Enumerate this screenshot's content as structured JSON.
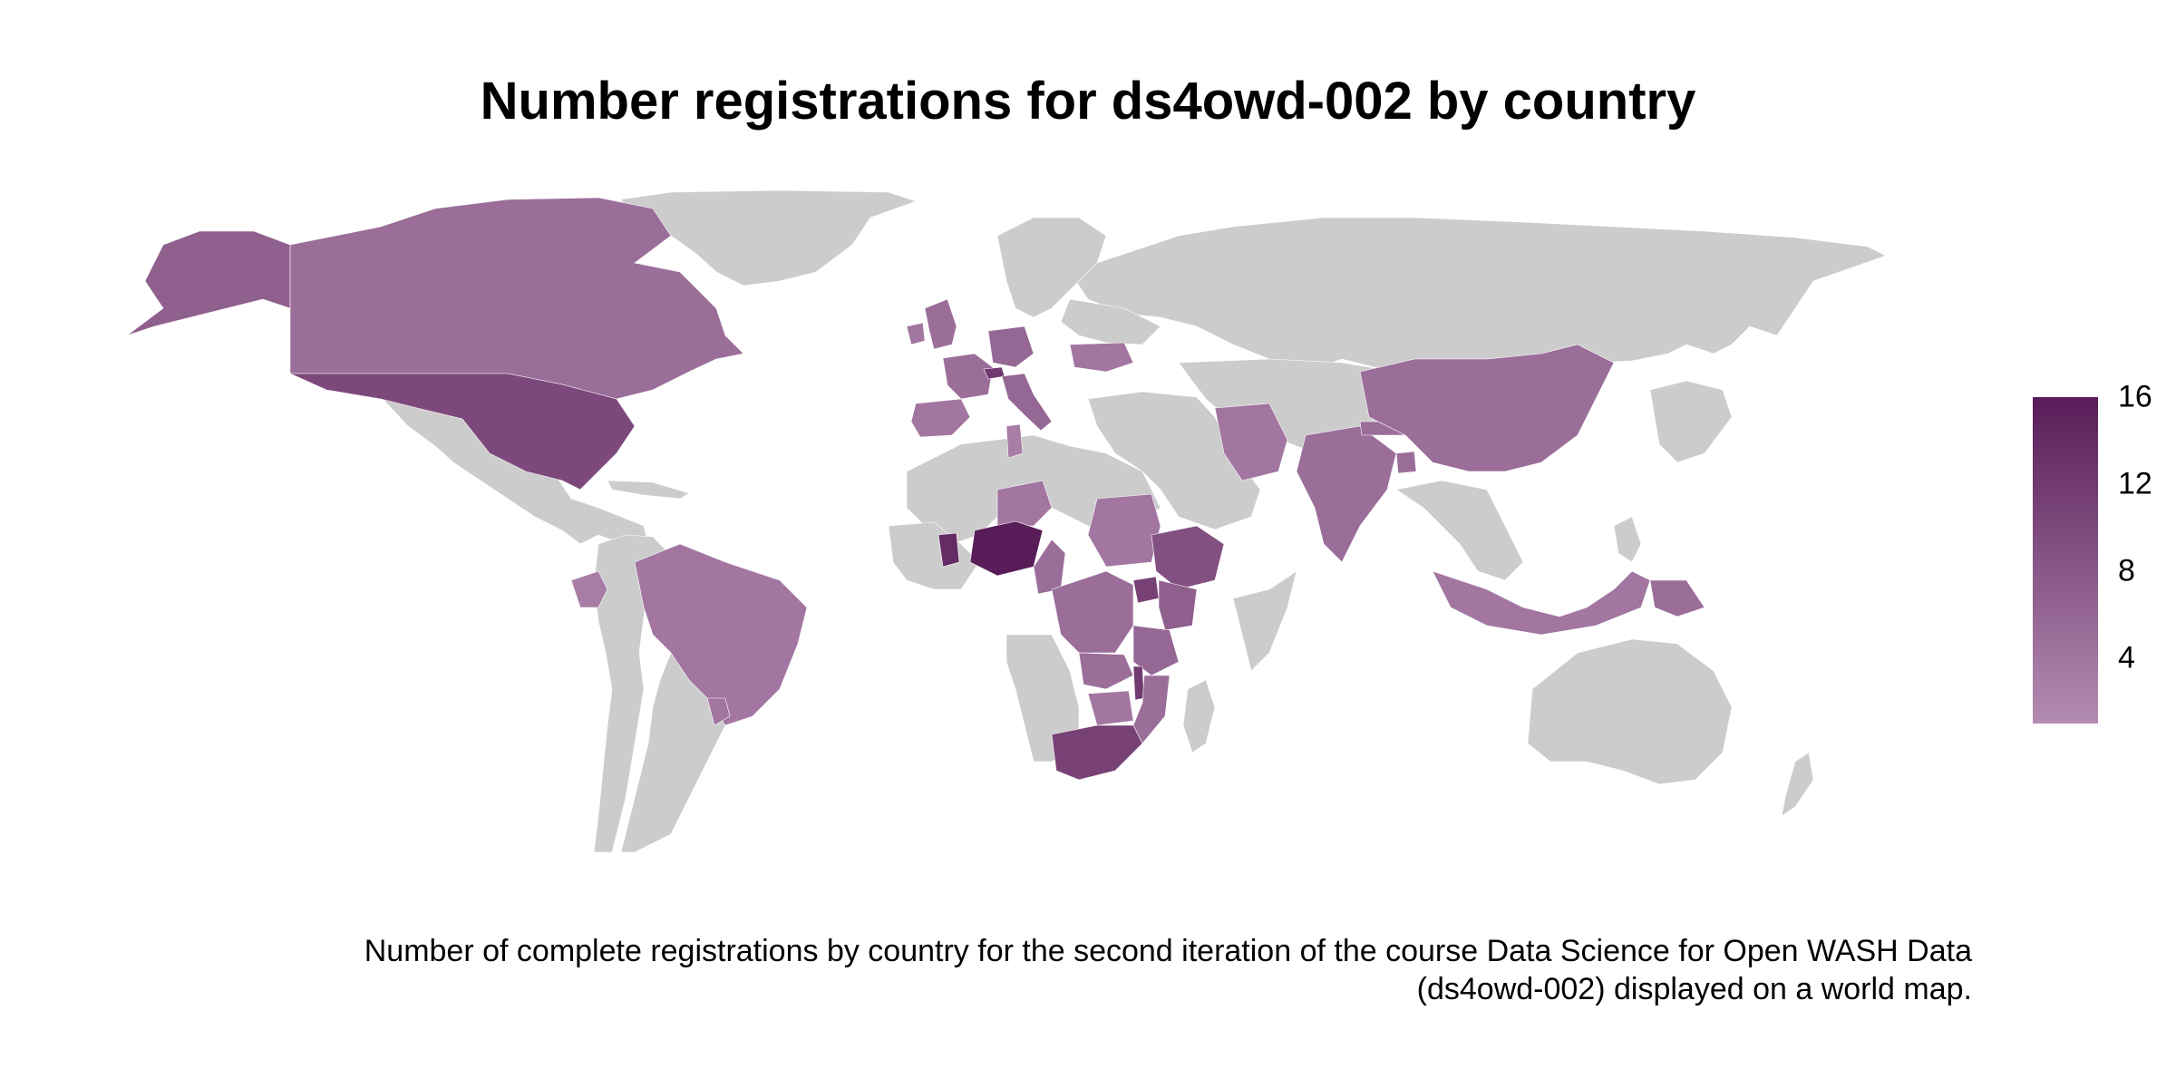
{
  "title": "Number registrations for ds4owd-002 by country",
  "caption_line1": "Number of complete registrations by country for the second iteration of the course Data Science for Open WASH Data",
  "caption_line2": "(ds4owd-002)  displayed on a world map.",
  "legend": {
    "min": 1,
    "max": 16,
    "ticks": [
      "16",
      "12",
      "8",
      "4"
    ],
    "tick_values": [
      16,
      12,
      8,
      4
    ],
    "color_low": "#b48cb2",
    "color_high": "#581c58",
    "no_data_color": "#cccccc"
  },
  "countries": [
    {
      "name": "Canada",
      "value": 5
    },
    {
      "name": "Alaska",
      "value": 7
    },
    {
      "name": "United States",
      "value": 10
    },
    {
      "name": "Brazil",
      "value": 4
    },
    {
      "name": "Ecuador",
      "value": 3
    },
    {
      "name": "Uruguay",
      "value": 4
    },
    {
      "name": "United Kingdom",
      "value": 5
    },
    {
      "name": "Ireland",
      "value": 4
    },
    {
      "name": "France",
      "value": 5
    },
    {
      "name": "Spain",
      "value": 4
    },
    {
      "name": "Germany",
      "value": 6
    },
    {
      "name": "Switzerland",
      "value": 12
    },
    {
      "name": "Italy",
      "value": 6
    },
    {
      "name": "Ukraine",
      "value": 4
    },
    {
      "name": "Tunisia",
      "value": 3
    },
    {
      "name": "Niger",
      "value": 4
    },
    {
      "name": "Ghana",
      "value": 14
    },
    {
      "name": "Nigeria",
      "value": 16
    },
    {
      "name": "Cameroon",
      "value": 5
    },
    {
      "name": "Sudan",
      "value": 4
    },
    {
      "name": "Ethiopia",
      "value": 9
    },
    {
      "name": "Uganda",
      "value": 11
    },
    {
      "name": "Kenya",
      "value": 7
    },
    {
      "name": "Tanzania",
      "value": 6
    },
    {
      "name": "DR Congo",
      "value": 5
    },
    {
      "name": "Zambia",
      "value": 5
    },
    {
      "name": "Malawi",
      "value": 12
    },
    {
      "name": "Mozambique",
      "value": 5
    },
    {
      "name": "Zimbabwe",
      "value": 4
    },
    {
      "name": "South Africa",
      "value": 11
    },
    {
      "name": "Iran",
      "value": 4
    },
    {
      "name": "India",
      "value": 5
    },
    {
      "name": "Nepal",
      "value": 5
    },
    {
      "name": "Bangladesh",
      "value": 5
    },
    {
      "name": "China",
      "value": 5
    },
    {
      "name": "Indonesia",
      "value": 4
    },
    {
      "name": "Papua New Guinea",
      "value": 5
    }
  ]
}
